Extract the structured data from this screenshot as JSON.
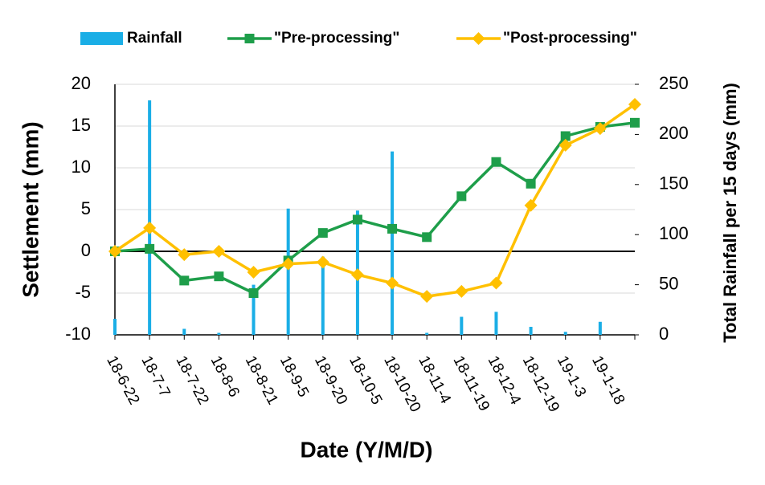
{
  "chart_data": {
    "type": "line",
    "x_label": "Date (Y/M/D)",
    "y_label": "Settlement  (mm)",
    "y2_label": "Total Rainfall per 15 days (mm)",
    "categories": [
      "18-6-22",
      "18-7-7",
      "18-7-22",
      "18-8-6",
      "18-8-21",
      "18-9-5",
      "18-9-20",
      "18-10-5",
      "18-10-20",
      "18-11-4",
      "18-11-19",
      "18-12-4",
      "18-12-19",
      "19-1-3",
      "19-1-18",
      null
    ],
    "series": [
      {
        "name": "Rainfall",
        "type": "bar",
        "axis": "y2",
        "color": "#1aaee6",
        "values": [
          16,
          234,
          6,
          2,
          50,
          126,
          78,
          124,
          183,
          2,
          18,
          23,
          8,
          3,
          13,
          null
        ]
      },
      {
        "name": "\"Pre-processing\"",
        "type": "line",
        "marker": "square",
        "color": "#1e9e4a",
        "values": [
          0,
          0.3,
          -3.5,
          -3.0,
          -5.0,
          -1.1,
          2.2,
          3.8,
          2.7,
          1.7,
          6.6,
          10.7,
          8.1,
          13.8,
          14.9,
          15.4
        ]
      },
      {
        "name": "\"Post-processing\"",
        "type": "line",
        "marker": "diamond",
        "color": "#ffc000",
        "values": [
          0,
          2.8,
          -0.4,
          0,
          -2.5,
          -1.5,
          -1.3,
          -2.8,
          -3.8,
          -5.4,
          -4.8,
          -3.8,
          5.5,
          12.7,
          14.7,
          17.6
        ]
      }
    ],
    "ylim": [
      -10,
      20
    ],
    "yticks": [
      -10,
      -5,
      0,
      5,
      10,
      15,
      20
    ],
    "y2lim": [
      0,
      250
    ],
    "y2ticks": [
      0,
      50,
      100,
      150,
      200,
      250
    ],
    "grid": true,
    "legend": "top"
  }
}
